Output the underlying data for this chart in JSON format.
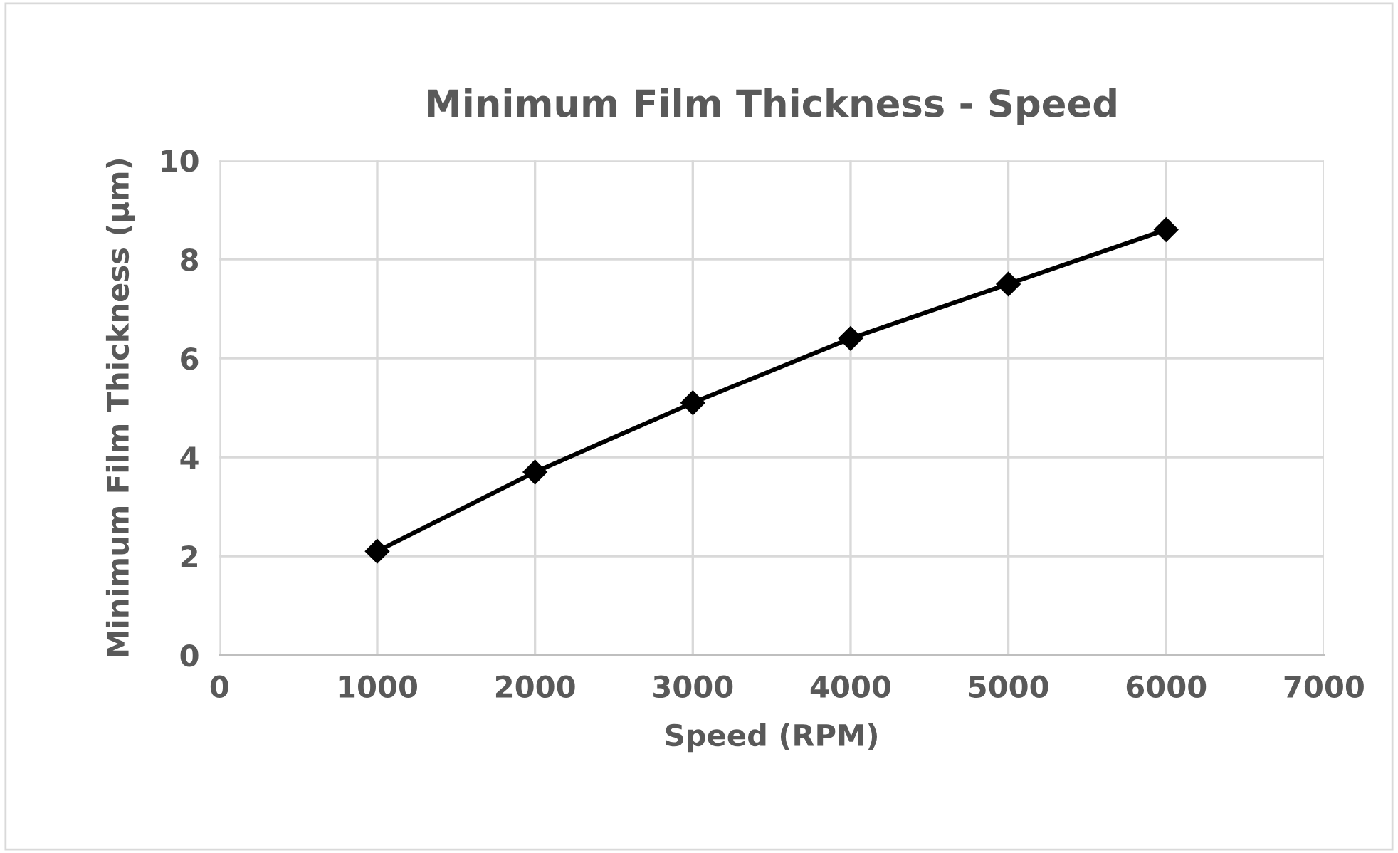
{
  "chart_data": {
    "type": "line",
    "title": "Minimum Film Thickness - Speed",
    "xlabel": "Speed (RPM)",
    "ylabel": "Minimum Film Thickness (µm)",
    "x": [
      1000,
      2000,
      3000,
      4000,
      5000,
      6000
    ],
    "series": [
      {
        "color": "#000000",
        "values": [
          2.1,
          3.7,
          5.1,
          6.4,
          7.5,
          8.6
        ]
      }
    ],
    "xlim": [
      0,
      7000
    ],
    "xticks": [
      0,
      1000,
      2000,
      3000,
      4000,
      5000,
      6000,
      7000
    ],
    "ylim": [
      0,
      10
    ],
    "yticks": [
      0,
      2,
      4,
      6,
      8,
      10
    ],
    "grid": true,
    "marker": "diamond",
    "line_style": "solid"
  }
}
